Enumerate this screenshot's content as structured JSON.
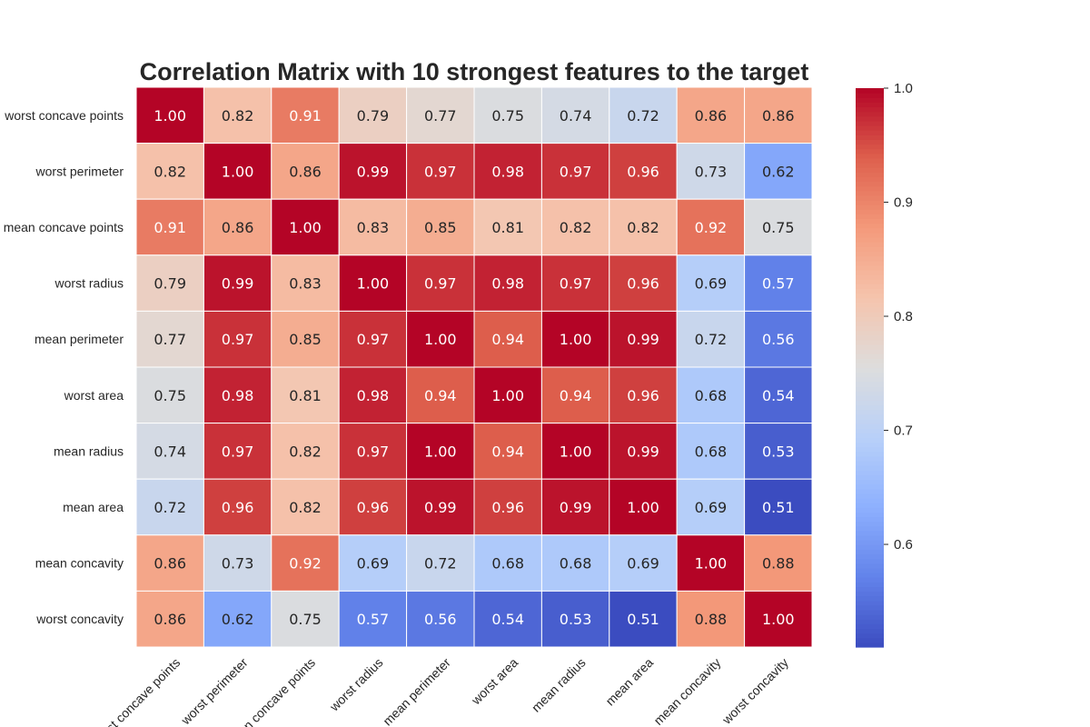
{
  "chart_data": {
    "type": "heatmap",
    "title": "Correlation Matrix with 10 strongest features to the target",
    "rows": [
      "worst concave points",
      "worst perimeter",
      "mean concave points",
      "worst radius",
      "mean perimeter",
      "worst area",
      "mean radius",
      "mean area",
      "mean concavity",
      "worst concavity"
    ],
    "columns": [
      "worst concave points",
      "worst perimeter",
      "mean concave points",
      "worst radius",
      "mean perimeter",
      "worst area",
      "mean radius",
      "mean area",
      "mean concavity",
      "worst concavity"
    ],
    "values": [
      [
        1.0,
        0.82,
        0.91,
        0.79,
        0.77,
        0.75,
        0.74,
        0.72,
        0.86,
        0.86
      ],
      [
        0.82,
        1.0,
        0.86,
        0.99,
        0.97,
        0.98,
        0.97,
        0.96,
        0.73,
        0.62
      ],
      [
        0.91,
        0.86,
        1.0,
        0.83,
        0.85,
        0.81,
        0.82,
        0.82,
        0.92,
        0.75
      ],
      [
        0.79,
        0.99,
        0.83,
        1.0,
        0.97,
        0.98,
        0.97,
        0.96,
        0.69,
        0.57
      ],
      [
        0.77,
        0.97,
        0.85,
        0.97,
        1.0,
        0.94,
        1.0,
        0.99,
        0.72,
        0.56
      ],
      [
        0.75,
        0.98,
        0.81,
        0.98,
        0.94,
        1.0,
        0.94,
        0.96,
        0.68,
        0.54
      ],
      [
        0.74,
        0.97,
        0.82,
        0.97,
        1.0,
        0.94,
        1.0,
        0.99,
        0.68,
        0.53
      ],
      [
        0.72,
        0.96,
        0.82,
        0.96,
        0.99,
        0.96,
        0.99,
        1.0,
        0.69,
        0.51
      ],
      [
        0.86,
        0.73,
        0.92,
        0.69,
        0.72,
        0.68,
        0.68,
        0.69,
        1.0,
        0.88
      ],
      [
        0.86,
        0.62,
        0.75,
        0.57,
        0.56,
        0.54,
        0.53,
        0.51,
        0.88,
        1.0
      ]
    ],
    "colormap": "coolwarm",
    "vmin": 0.51,
    "vmax": 1.0,
    "colorbar_ticks": [
      0.6,
      0.7,
      0.8,
      0.9,
      1.0
    ],
    "colorbar_tick_labels": [
      "0.6",
      "0.7",
      "0.8",
      "0.9",
      "1.0"
    ],
    "annotation_format": "2 decimals",
    "colorbar_placement": "right",
    "grid_lines_color": "#ffffff"
  }
}
